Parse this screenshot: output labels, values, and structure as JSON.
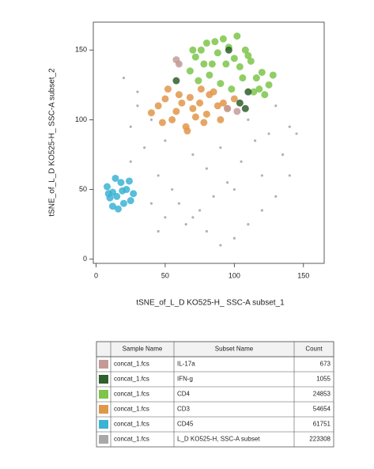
{
  "chart_data": {
    "type": "scatter",
    "xlabel": "tSNE_of_L_D KO525-H_ SSC-A subset_1",
    "ylabel": "tSNE_of_L_D KO525-H_ SSC-A subset_2",
    "xlim": [
      -2,
      165
    ],
    "ylim": [
      -3,
      170
    ],
    "xticks": [
      0,
      50,
      100,
      150
    ],
    "yticks": [
      0,
      50,
      100,
      150
    ],
    "table_columns": [
      "Sample Name",
      "Subset Name",
      "Count"
    ],
    "series": [
      {
        "name": "IL-17a",
        "sample": "concat_1.fcs",
        "count": 673,
        "color": "#c49a98",
        "x": [
          60,
          102,
          58,
          95
        ],
        "y": [
          140,
          106,
          143,
          108
        ]
      },
      {
        "name": "IFN-g",
        "sample": "concat_1.fcs",
        "count": 1055,
        "color": "#2f5f2c",
        "x": [
          58,
          104,
          110,
          108,
          96
        ],
        "y": [
          128,
          112,
          120,
          108,
          150
        ]
      },
      {
        "name": "CD4",
        "sample": "concat_1.fcs",
        "count": 24853,
        "color": "#7cc54a",
        "x": [
          68,
          72,
          76,
          80,
          84,
          88,
          92,
          96,
          100,
          104,
          108,
          112,
          116,
          120,
          125,
          74,
          82,
          90,
          98,
          106,
          114,
          122,
          86,
          94,
          102,
          78,
          110,
          128,
          118,
          70
        ],
        "y": [
          135,
          145,
          150,
          155,
          140,
          148,
          158,
          152,
          144,
          138,
          150,
          142,
          130,
          134,
          125,
          128,
          132,
          126,
          122,
          130,
          120,
          118,
          156,
          140,
          160,
          140,
          146,
          132,
          122,
          150
        ]
      },
      {
        "name": "CD3",
        "sample": "concat_1.fcs",
        "count": 54654,
        "color": "#e0974a",
        "x": [
          40,
          45,
          50,
          55,
          60,
          65,
          70,
          75,
          80,
          85,
          90,
          95,
          100,
          48,
          58,
          68,
          78,
          88,
          52,
          62,
          72,
          82,
          92,
          66,
          76
        ],
        "y": [
          105,
          110,
          115,
          100,
          118,
          95,
          108,
          112,
          104,
          120,
          100,
          108,
          115,
          98,
          106,
          116,
          98,
          110,
          122,
          112,
          102,
          118,
          112,
          92,
          122
        ]
      },
      {
        "name": "CD45",
        "sample": "concat_1.fcs",
        "count": 61751,
        "color": "#3bb3d3",
        "x": [
          8,
          12,
          15,
          18,
          22,
          25,
          10,
          14,
          20,
          27,
          16,
          12,
          24,
          19,
          9
        ],
        "y": [
          52,
          48,
          45,
          55,
          50,
          42,
          44,
          58,
          40,
          47,
          36,
          38,
          56,
          49,
          47
        ]
      },
      {
        "name": "L_D KO525-H, SSC-A subset",
        "sample": "concat_1.fcs",
        "count": 223308,
        "color": "#a8a8a8",
        "x": [
          20,
          30,
          40,
          35,
          25,
          45,
          55,
          60,
          70,
          80,
          90,
          100,
          110,
          120,
          130,
          140,
          135,
          125,
          115,
          105,
          95,
          85,
          75,
          65,
          50,
          40,
          30,
          60,
          80,
          100,
          120,
          140,
          110,
          90,
          70,
          50,
          45,
          130,
          145,
          25
        ],
        "y": [
          130,
          120,
          100,
          80,
          70,
          60,
          50,
          40,
          30,
          20,
          10,
          15,
          25,
          35,
          45,
          60,
          75,
          90,
          85,
          70,
          55,
          45,
          35,
          25,
          30,
          40,
          110,
          140,
          65,
          50,
          60,
          95,
          100,
          80,
          75,
          85,
          20,
          110,
          90,
          95
        ]
      }
    ]
  }
}
